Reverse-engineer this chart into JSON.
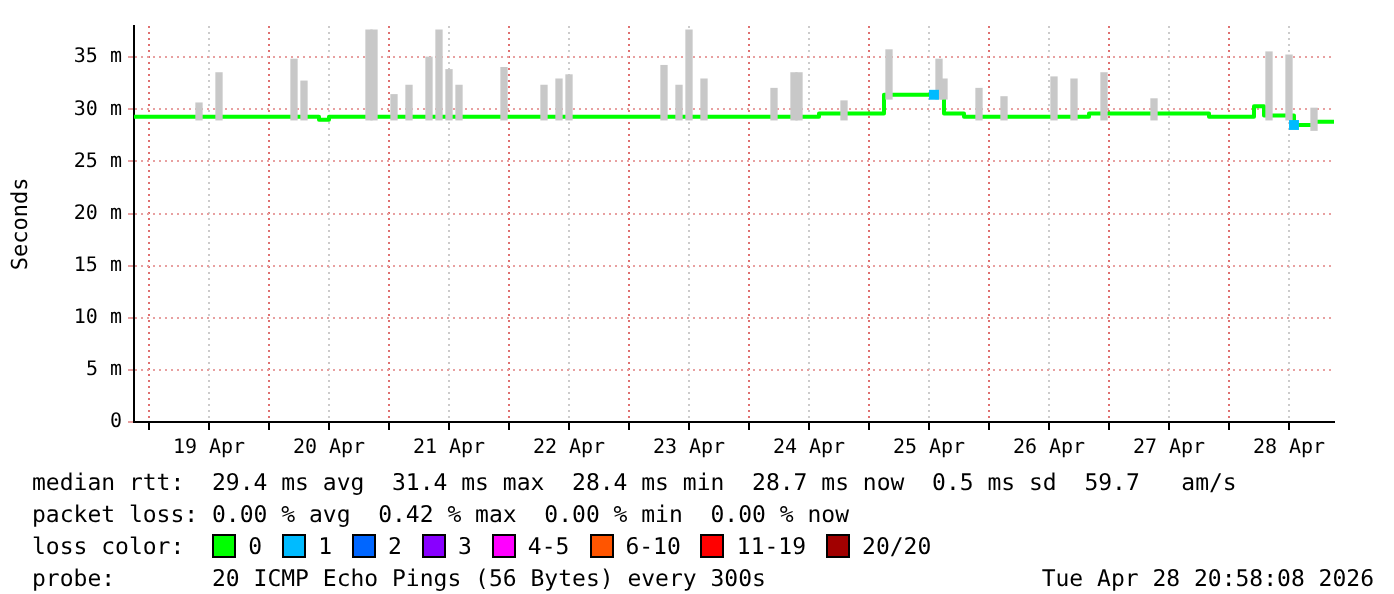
{
  "chart_data": {
    "type": "step",
    "ylabel": "Seconds",
    "legend_title": "loss color:",
    "legend": "bottom",
    "grid": true,
    "marker": "none",
    "xlim": [
      "2026-04-18T21:00",
      "2026-04-28T21:00"
    ],
    "xticks": [
      {
        "value": "2026-04-19T00:00",
        "label": null
      },
      {
        "value": "2026-04-19T12:00",
        "label": "19 Apr"
      },
      {
        "value": "2026-04-20T00:00",
        "label": null
      },
      {
        "value": "2026-04-20T12:00",
        "label": "20 Apr"
      },
      {
        "value": "2026-04-21T00:00",
        "label": null
      },
      {
        "value": "2026-04-21T12:00",
        "label": "21 Apr"
      },
      {
        "value": "2026-04-22T00:00",
        "label": null
      },
      {
        "value": "2026-04-22T12:00",
        "label": "22 Apr"
      },
      {
        "value": "2026-04-23T00:00",
        "label": null
      },
      {
        "value": "2026-04-23T12:00",
        "label": "23 Apr"
      },
      {
        "value": "2026-04-24T00:00",
        "label": null
      },
      {
        "value": "2026-04-24T12:00",
        "label": "24 Apr"
      },
      {
        "value": "2026-04-25T00:00",
        "label": null
      },
      {
        "value": "2026-04-25T12:00",
        "label": "25 Apr"
      },
      {
        "value": "2026-04-26T00:00",
        "label": null
      },
      {
        "value": "2026-04-26T12:00",
        "label": "26 Apr"
      },
      {
        "value": "2026-04-27T00:00",
        "label": null
      },
      {
        "value": "2026-04-27T12:00",
        "label": "27 Apr"
      },
      {
        "value": "2026-04-28T00:00",
        "label": null
      },
      {
        "value": "2026-04-28T12:00",
        "label": "28 Apr"
      }
    ],
    "ylim": [
      0,
      38
    ],
    "yticks": [
      0,
      {
        "value": 5,
        "label": "5 m"
      },
      {
        "value": 10,
        "label": "10 m"
      },
      {
        "value": 15,
        "label": "15 m"
      },
      {
        "value": 20,
        "label": "20 m"
      },
      {
        "value": 25,
        "label": "25 m"
      },
      {
        "value": 30,
        "label": "30 m"
      },
      {
        "value": 35,
        "label": "35 m"
      }
    ],
    "series": [
      {
        "type": "bar",
        "color": "#c8c8c8",
        "x": [
          "2026-04-19T10:00",
          "2026-04-19T14:00",
          "2026-04-20T05:00",
          "2026-04-20T07:00",
          "2026-04-20T20:00",
          "2026-04-20T21:00",
          "2026-04-21T01:00",
          "2026-04-21T04:00",
          "2026-04-21T08:00",
          "2026-04-21T10:00",
          "2026-04-21T12:00",
          "2026-04-21T14:00",
          "2026-04-21T23:00",
          "2026-04-22T07:00",
          "2026-04-22T10:00",
          "2026-04-22T12:00",
          "2026-04-23T07:00",
          "2026-04-23T10:00",
          "2026-04-23T12:00",
          "2026-04-23T15:00",
          "2026-04-24T05:00",
          "2026-04-24T09:00",
          "2026-04-24T10:00",
          "2026-04-24T19:00",
          "2026-04-25T04:00",
          "2026-04-25T14:00",
          "2026-04-25T15:00",
          "2026-04-25T22:00",
          "2026-04-26T03:00",
          "2026-04-26T13:00",
          "2026-04-26T17:00",
          "2026-04-26T23:00",
          "2026-04-27T09:00",
          "2026-04-28T08:00",
          "2026-04-28T12:00",
          "2026-04-28T17:00"
        ],
        "base": [
          29,
          29,
          29,
          29,
          29,
          29,
          29,
          29,
          29,
          29,
          29,
          29,
          29,
          29,
          29,
          29,
          29,
          29,
          29,
          29,
          29,
          29,
          29,
          29,
          31,
          31,
          31,
          29,
          29,
          29,
          29,
          29,
          29,
          29,
          29,
          28
        ],
        "values": [
          1.6,
          4.5,
          5.8,
          3.7,
          8.6,
          8.6,
          2.4,
          3.3,
          6,
          8.6,
          4.8,
          3.3,
          5,
          3.3,
          3.9,
          4.3,
          5.2,
          3.3,
          8.6,
          3.9,
          3,
          4.5,
          4.5,
          1.8,
          4.7,
          3.8,
          1.9,
          3,
          2.2,
          4.1,
          3.9,
          4.5,
          2,
          6.5,
          6.2,
          2.1
        ]
      },
      {
        "name": "0",
        "color": "#00ff00",
        "x": [
          "2026-04-18T21:00",
          "2026-04-20T10:00",
          "2026-04-20T12:00",
          "2026-04-24T14:00",
          "2026-04-25T03:00",
          "2026-04-25T15:00",
          "2026-04-25T19:00",
          "2026-04-26T20:00",
          "2026-04-27T20:00",
          "2026-04-28T05:00",
          "2026-04-28T07:00",
          "2026-04-28T13:00",
          "2026-04-28T17:00",
          "2026-04-28T21:00"
        ],
        "values": [
          29.3,
          29,
          29.3,
          29.6,
          31.4,
          29.6,
          29.3,
          29.6,
          29.3,
          30.3,
          29.4,
          28.5,
          28.8,
          28.8
        ]
      },
      {
        "name": "1",
        "color": "#00bbff",
        "type": "scatter",
        "marker": "square",
        "x": [
          "2026-04-25T13:00",
          "2026-04-28T13:00"
        ],
        "values": [
          31.4,
          28.5
        ]
      },
      {
        "name": "2",
        "color": "#0066ff"
      },
      {
        "name": "3",
        "color": "#8800ff"
      },
      {
        "name": "4-5",
        "color": "#ff00ff"
      },
      {
        "name": "6-10",
        "color": "#ff5500"
      },
      {
        "name": "11-19",
        "color": "#ff0000"
      },
      {
        "name": "20/20",
        "color": "#a10000"
      }
    ],
    "annotations": [
      "median rtt:  29.4 ms avg  31.4 ms max  28.4 ms min  28.7 ms now  0.5 ms sd  59.7   am/s",
      "packet loss: 0.00 % avg  0.42 % max  0.00 % min  0.00 % now",
      "probe:       20 ICMP Echo Pings (56 Bytes) every 300s",
      "Tue Apr 28 20:58:08 2026"
    ]
  }
}
